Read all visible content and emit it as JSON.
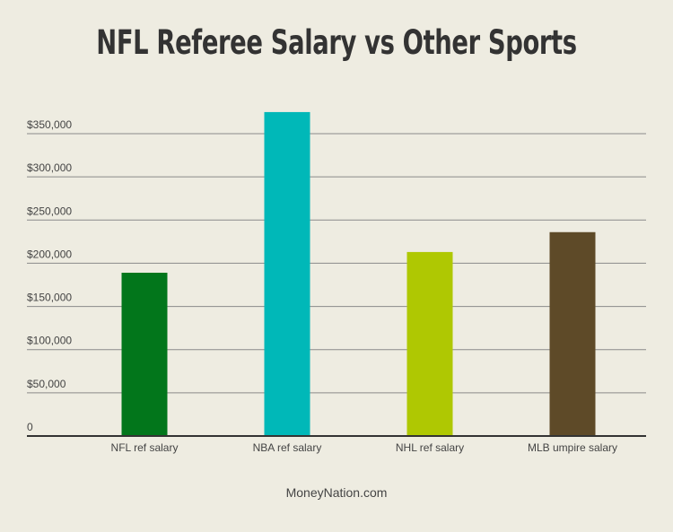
{
  "title": "NFL Referee Salary vs Other Sports",
  "footer": "MoneyNation.com",
  "colors": {
    "background": "#eeece1",
    "grid": "#8a8a8a",
    "axis": "#333333",
    "text": "#444444"
  },
  "chart_data": {
    "type": "bar",
    "title": "NFL Referee Salary vs Other Sports",
    "xlabel": "",
    "ylabel": "",
    "categories": [
      "NFL ref salary",
      "NBA ref salary",
      "NHL ref salary",
      "MLB umpire salary"
    ],
    "values": [
      189000,
      375000,
      213000,
      236000
    ],
    "bar_colors": [
      "#02761b",
      "#00b8b8",
      "#afc802",
      "#5e4a28"
    ],
    "ylim": [
      0,
      350000
    ],
    "yticks": [
      0,
      50000,
      100000,
      150000,
      200000,
      250000,
      300000,
      350000
    ],
    "ytick_labels": [
      "0",
      "$50,000",
      "$100,000",
      "$150,000",
      "$200,000",
      "$250,000",
      "$300,000",
      "$350,000"
    ],
    "grid": true,
    "legend": "none"
  }
}
